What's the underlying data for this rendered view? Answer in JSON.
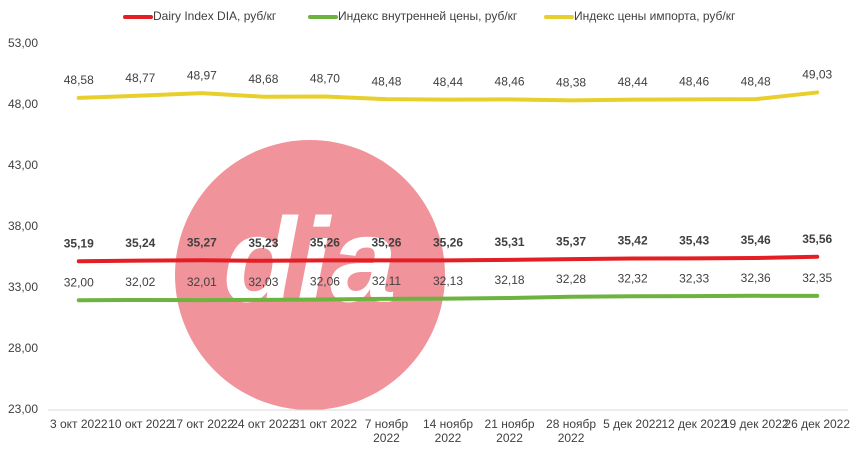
{
  "logo_text": "dia",
  "chart_data": {
    "type": "line",
    "categories": [
      "3 окт 2022",
      "10 окт 2022",
      "17 окт 2022",
      "24 окт 2022",
      "31 окт 2022",
      "7 ноябр 2022",
      "14 ноябр 2022",
      "21 ноябр 2022",
      "28 ноябр 2022",
      "5 дек 2022",
      "12 дек 2022",
      "19 дек 2022",
      "26 дек 2022"
    ],
    "series": [
      {
        "name": "Dairy Index DIA,  руб/кг",
        "color": "#e31e24",
        "values": [
          35.19,
          35.24,
          35.27,
          35.23,
          35.26,
          35.26,
          35.26,
          35.31,
          35.37,
          35.42,
          35.43,
          35.46,
          35.56
        ],
        "value_labels": [
          "35,19",
          "35,24",
          "35,27",
          "35,23",
          "35,26",
          "35,26",
          "35,26",
          "35,31",
          "35,37",
          "35,42",
          "35,43",
          "35,46",
          "35,56"
        ]
      },
      {
        "name": "Индекс внутренней цены, руб/кг",
        "color": "#6cb33f",
        "values": [
          32.0,
          32.02,
          32.01,
          32.03,
          32.06,
          32.11,
          32.13,
          32.18,
          32.28,
          32.32,
          32.33,
          32.36,
          32.35
        ],
        "value_labels": [
          "32,00",
          "32,02",
          "32,01",
          "32,03",
          "32,06",
          "32,11",
          "32,13",
          "32,18",
          "32,28",
          "32,32",
          "32,33",
          "32,36",
          "32,35"
        ]
      },
      {
        "name": "Индекс цены импорта, руб/кг",
        "color": "#e9cf2c",
        "values": [
          48.58,
          48.77,
          48.97,
          48.68,
          48.7,
          48.48,
          48.44,
          48.46,
          48.38,
          48.44,
          48.46,
          48.48,
          49.03
        ],
        "value_labels": [
          "48,58",
          "48,77",
          "48,97",
          "48,68",
          "48,70",
          "48,48",
          "48,44",
          "48,46",
          "48,38",
          "48,44",
          "48,46",
          "48,48",
          "49,03"
        ]
      }
    ],
    "ylim": [
      23,
      53
    ],
    "yticks": [
      {
        "value": 23,
        "label": "23,00"
      },
      {
        "value": 28,
        "label": "28,00"
      },
      {
        "value": 33,
        "label": "33,00"
      },
      {
        "value": 38,
        "label": "38,00"
      },
      {
        "value": 43,
        "label": "43,00"
      },
      {
        "value": 48,
        "label": "48,00"
      },
      {
        "value": 53,
        "label": "53,00"
      }
    ],
    "grid": false,
    "legend": "top"
  }
}
